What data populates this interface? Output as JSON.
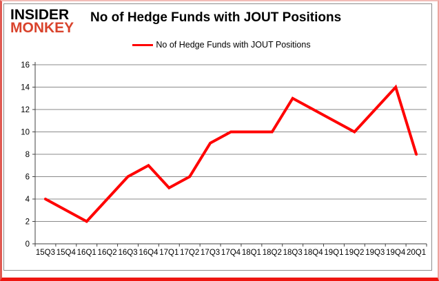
{
  "logo": {
    "line1": "INSIDER",
    "line2": "MONKEY"
  },
  "header": {
    "title": "No of Hedge Funds with JOUT Positions"
  },
  "legend": {
    "label": "No of Hedge Funds with JOUT Positions"
  },
  "colors": {
    "line_red": "#ff0000",
    "logo_red": "#d9432c",
    "grid_gray": "#898989",
    "axis_gray": "#404040",
    "frame_gray": "#8c8c8c",
    "border_bottom_red": "#ee1510"
  },
  "chart_data": {
    "type": "line",
    "title": "No of Hedge Funds with JOUT Positions",
    "xlabel": "",
    "ylabel": "",
    "categories": [
      "15Q3",
      "15Q4",
      "16Q1",
      "16Q2",
      "16Q3",
      "16Q4",
      "17Q1",
      "17Q2",
      "17Q3",
      "17Q4",
      "18Q1",
      "18Q2",
      "18Q3",
      "18Q4",
      "19Q1",
      "19Q2",
      "19Q3",
      "19Q4",
      "20Q1"
    ],
    "series": [
      {
        "name": "No of Hedge Funds with JOUT Positions",
        "values": [
          4,
          3,
          2,
          4,
          6,
          7,
          5,
          6,
          9,
          10,
          10,
          10,
          13,
          12,
          11,
          10,
          12,
          14,
          8
        ]
      }
    ],
    "ylim": [
      0,
      16
    ],
    "y_ticks": [
      0,
      2,
      4,
      6,
      8,
      10,
      12,
      14,
      16
    ],
    "grid": true,
    "legend_position": "top-center"
  }
}
